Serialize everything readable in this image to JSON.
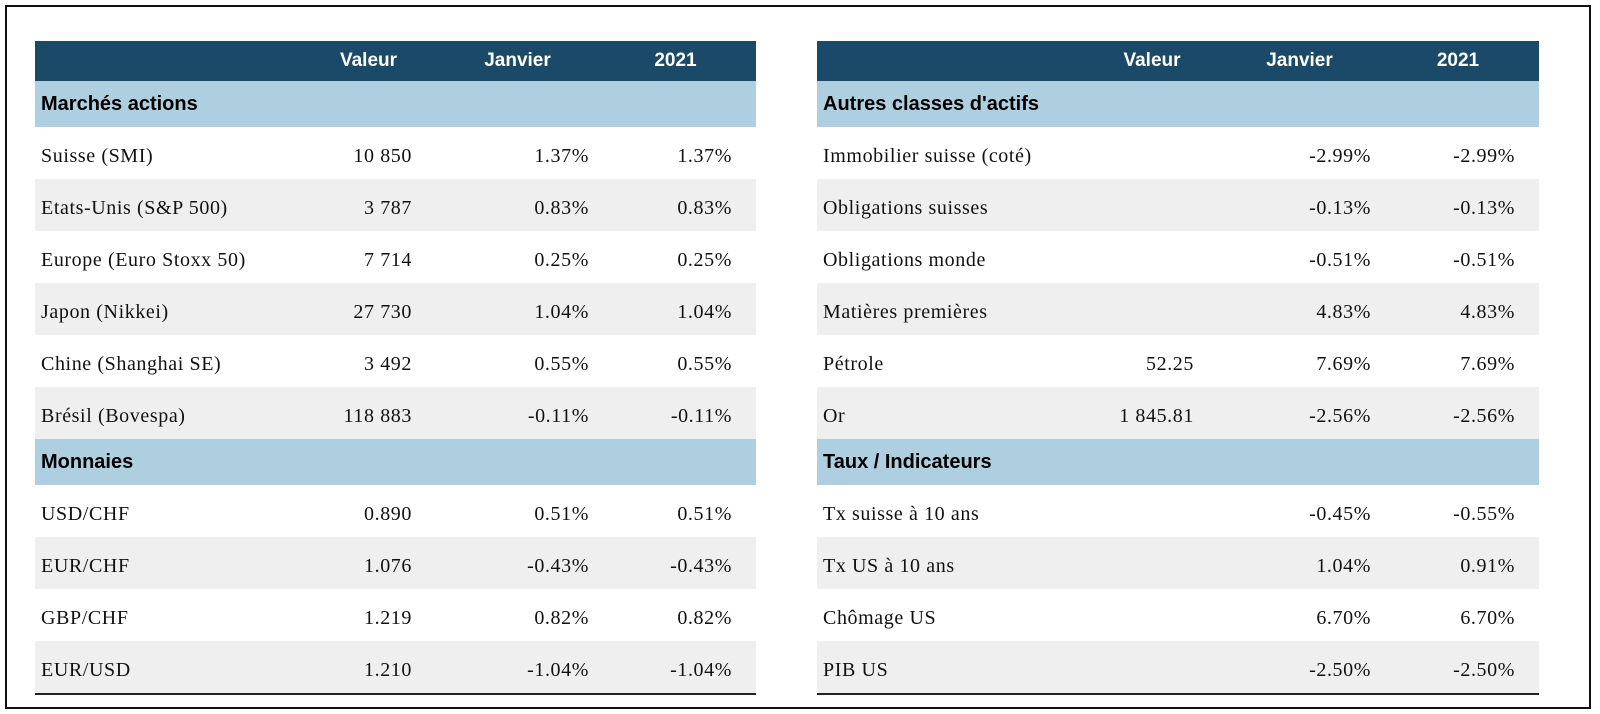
{
  "headers": {
    "valeur": "Valeur",
    "janvier": "Janvier",
    "annee": "2021"
  },
  "left": {
    "sections": [
      {
        "title": "Marchés actions",
        "rows": [
          {
            "label": "Suisse (SMI)",
            "valeur": "10 850",
            "janvier": "1.37%",
            "annee": "1.37%"
          },
          {
            "label": "Etats-Unis (S&P 500)",
            "valeur": "3 787",
            "janvier": "0.83%",
            "annee": "0.83%"
          },
          {
            "label": "Europe (Euro Stoxx 50)",
            "valeur": "7 714",
            "janvier": "0.25%",
            "annee": "0.25%"
          },
          {
            "label": "Japon (Nikkei)",
            "valeur": "27 730",
            "janvier": "1.04%",
            "annee": "1.04%"
          },
          {
            "label": "Chine (Shanghai SE)",
            "valeur": "3 492",
            "janvier": "0.55%",
            "annee": "0.55%"
          },
          {
            "label": "Brésil (Bovespa)",
            "valeur": "118 883",
            "janvier": "-0.11%",
            "annee": "-0.11%"
          }
        ]
      },
      {
        "title": "Monnaies",
        "rows": [
          {
            "label": "USD/CHF",
            "valeur": "0.890",
            "janvier": "0.51%",
            "annee": "0.51%"
          },
          {
            "label": "EUR/CHF",
            "valeur": "1.076",
            "janvier": "-0.43%",
            "annee": "-0.43%"
          },
          {
            "label": "GBP/CHF",
            "valeur": "1.219",
            "janvier": "0.82%",
            "annee": "0.82%"
          },
          {
            "label": "EUR/USD",
            "valeur": "1.210",
            "janvier": "-1.04%",
            "annee": "-1.04%"
          }
        ]
      }
    ]
  },
  "right": {
    "sections": [
      {
        "title": "Autres classes d'actifs",
        "rows": [
          {
            "label": "Immobilier suisse (coté)",
            "valeur": "",
            "janvier": "-2.99%",
            "annee": "-2.99%"
          },
          {
            "label": "Obligations suisses",
            "valeur": "",
            "janvier": "-0.13%",
            "annee": "-0.13%"
          },
          {
            "label": "Obligations monde",
            "valeur": "",
            "janvier": "-0.51%",
            "annee": "-0.51%"
          },
          {
            "label": "Matières premières",
            "valeur": "",
            "janvier": "4.83%",
            "annee": "4.83%"
          },
          {
            "label": "Pétrole",
            "valeur": "52.25",
            "janvier": "7.69%",
            "annee": "7.69%"
          },
          {
            "label": "Or",
            "valeur": "1 845.81",
            "janvier": "-2.56%",
            "annee": "-2.56%"
          }
        ]
      },
      {
        "title": "Taux / Indicateurs",
        "rows": [
          {
            "label": "Tx suisse à 10 ans",
            "valeur": "",
            "janvier": "-0.45%",
            "annee": "-0.55%"
          },
          {
            "label": "Tx US à 10 ans",
            "valeur": "",
            "janvier": "1.04%",
            "annee": "0.91%"
          },
          {
            "label": "Chômage US",
            "valeur": "",
            "janvier": "6.70%",
            "annee": "6.70%"
          },
          {
            "label": "PIB US",
            "valeur": "",
            "janvier": "-2.50%",
            "annee": "-2.50%"
          }
        ]
      }
    ]
  },
  "colors": {
    "header_bg": "#1b4a68",
    "section_bg": "#aecfe0",
    "stripe_bg": "#efefef"
  }
}
